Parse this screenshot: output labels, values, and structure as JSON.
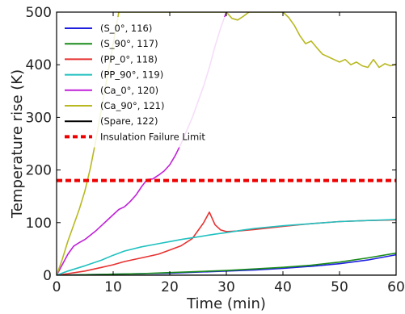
{
  "chart_data": {
    "type": "line",
    "title": "",
    "xlabel": "Time (min)",
    "ylabel": "Temperature rise (K)",
    "xlim": [
      0,
      60
    ],
    "ylim": [
      0,
      500
    ],
    "xticks": [
      0,
      10,
      20,
      30,
      40,
      50,
      60
    ],
    "yticks": [
      0,
      100,
      200,
      300,
      400,
      500
    ],
    "grid": false,
    "legend_position": "top-left",
    "series": [
      {
        "name": "(S_0°, 116)",
        "color": "#1f1fe0",
        "x": [
          0,
          5,
          10,
          15,
          20,
          25,
          30,
          35,
          40,
          45,
          50,
          55,
          60
        ],
        "y": [
          0,
          1,
          2,
          3,
          4,
          6,
          8,
          10,
          13,
          17,
          22,
          29,
          39
        ]
      },
      {
        "name": "(S_90°, 117)",
        "color": "#1a8c1a",
        "x": [
          0,
          5,
          10,
          15,
          20,
          25,
          30,
          35,
          40,
          45,
          50,
          55,
          60
        ],
        "y": [
          0,
          1,
          2,
          3,
          5,
          7,
          9,
          12,
          15,
          19,
          25,
          33,
          42
        ]
      },
      {
        "name": "(PP_0°, 118)",
        "color": "#e83030",
        "x": [
          0,
          2,
          5,
          8,
          10,
          12,
          15,
          18,
          20,
          22,
          24,
          25,
          26,
          27,
          28,
          29,
          30,
          32,
          35,
          40,
          45,
          50,
          55,
          60
        ],
        "y": [
          0,
          3,
          8,
          15,
          20,
          26,
          33,
          40,
          48,
          56,
          70,
          85,
          100,
          120,
          96,
          86,
          83,
          84,
          87,
          93,
          98,
          102,
          104,
          105
        ]
      },
      {
        "name": "(PP_90°, 119)",
        "color": "#20c0c0",
        "x": [
          0,
          2,
          5,
          8,
          10,
          12,
          15,
          18,
          20,
          22,
          25,
          28,
          30,
          33,
          35,
          40,
          45,
          50,
          55,
          60
        ],
        "y": [
          0,
          8,
          18,
          29,
          38,
          46,
          54,
          60,
          64,
          68,
          73,
          78,
          81,
          86,
          89,
          94,
          98,
          102,
          104,
          106
        ]
      },
      {
        "name": "(Ca_0°, 120)",
        "color": "#c020d8",
        "x": [
          0,
          1,
          2,
          3,
          4,
          5,
          7,
          9,
          11,
          12,
          13,
          14,
          15,
          16,
          17,
          18,
          19,
          20,
          21,
          22,
          23,
          24,
          25,
          26,
          27,
          28,
          29,
          30
        ],
        "y": [
          0,
          20,
          40,
          55,
          62,
          68,
          85,
          105,
          125,
          130,
          140,
          152,
          168,
          182,
          183,
          190,
          198,
          210,
          228,
          250,
          275,
          300,
          330,
          360,
          395,
          435,
          470,
          500
        ]
      },
      {
        "name": "(Ca_90°, 121)",
        "color": "#b8b820",
        "x": [
          0,
          1,
          2,
          3,
          4,
          5,
          6,
          7,
          8,
          9,
          10,
          11,
          30,
          31,
          32,
          33,
          34,
          35,
          36,
          37,
          38,
          39,
          40,
          41,
          42,
          43,
          44,
          45,
          46,
          47,
          48,
          49,
          50,
          51,
          52,
          53,
          54,
          55,
          56,
          57,
          58,
          59,
          60
        ],
        "y": [
          0,
          30,
          65,
          95,
          125,
          160,
          205,
          260,
          320,
          380,
          440,
          500,
          500,
          488,
          485,
          492,
          500,
          500,
          500,
          500,
          500,
          500,
          500,
          490,
          475,
          455,
          440,
          445,
          432,
          420,
          415,
          410,
          405,
          410,
          400,
          405,
          398,
          395,
          410,
          395,
          402,
          398,
          401
        ]
      },
      {
        "name": "(Spare, 122)",
        "color": "#000000",
        "x": [
          0,
          60
        ],
        "y": [
          0,
          0
        ]
      }
    ],
    "reference_lines": [
      {
        "name": "Insulation Failure Limit",
        "y": 180,
        "color": "#ee0000",
        "style": "dotted"
      }
    ]
  }
}
